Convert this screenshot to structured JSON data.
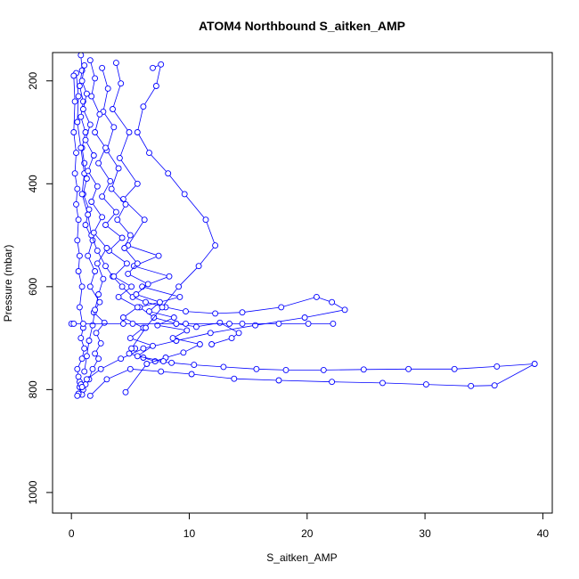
{
  "chart_data": {
    "type": "scatter",
    "title": "ATOM4 Northbound S_aitken_AMP",
    "xlabel": "S_aitken_AMP",
    "ylabel": "Pressure (mbar)",
    "xlim": [
      -1.6,
      40.8
    ],
    "ylim": [
      1040,
      145
    ],
    "y_reversed": true,
    "grid": false,
    "legend": "none",
    "xticks": [
      0,
      10,
      20,
      30,
      40
    ],
    "yticks": [
      200,
      400,
      600,
      800,
      1000
    ],
    "point_style": "open-circle",
    "colors": {
      "series": "#0000ff",
      "axes": "#000000",
      "background": "#ffffff"
    },
    "series": [
      {
        "x": [
          0.8,
          0.9,
          0.7,
          1.0,
          0.8,
          1.2,
          0.9,
          1.1,
          1.3,
          1.0,
          1.5,
          1.2,
          1.8,
          1.4,
          2.0,
          1.6,
          2.4,
          1.9,
          2.8,
          2.1,
          2.5,
          2.0,
          2.3,
          1.8,
          1.5,
          1.2,
          1.0,
          0.9
        ],
        "y": [
          150,
          180,
          210,
          240,
          270,
          300,
          330,
          360,
          390,
          420,
          450,
          480,
          510,
          540,
          570,
          600,
          630,
          650,
          670,
          690,
          710,
          730,
          740,
          760,
          780,
          790,
          800,
          810
        ]
      },
      {
        "x": [
          0.4,
          0.6,
          0.5,
          0.8,
          1.1,
          0.9,
          1.4,
          1.7,
          2.2,
          2.9,
          3.5,
          4.3,
          5.2,
          6.3,
          8.0,
          9.7,
          12.2,
          14.5,
          17.8,
          20.8,
          22.1,
          23.2,
          19.8,
          15.6,
          11.8,
          8.9,
          6.1,
          4.2,
          2.5,
          1.3,
          0.7
        ],
        "y": [
          185,
          230,
          280,
          330,
          380,
          420,
          460,
          500,
          530,
          560,
          580,
          600,
          620,
          630,
          640,
          648,
          652,
          650,
          640,
          620,
          630,
          645,
          660,
          675,
          690,
          705,
          720,
          740,
          760,
          780,
          795
        ]
      },
      {
        "x": [
          3.8,
          4.2,
          3.5,
          4.9,
          4.1,
          5.6,
          4.4,
          6.2,
          4.8,
          7.4,
          5.3,
          8.3,
          6.0,
          9.2,
          5.8,
          7.0,
          8.9,
          10.6,
          12.6,
          14.2,
          13.6,
          11.9
        ],
        "y": [
          165,
          205,
          255,
          300,
          350,
          400,
          430,
          470,
          520,
          540,
          560,
          580,
          600,
          620,
          640,
          660,
          672,
          678,
          670,
          690,
          700,
          712
        ]
      },
      {
        "x": [
          5.4,
          4.9,
          6.1,
          7.1,
          8.5,
          10.4,
          12.9,
          15.7,
          18.2,
          21.4,
          24.8,
          28.6,
          32.5,
          36.1,
          39.3,
          35.9,
          33.9,
          30.1,
          26.4,
          22.1,
          17.6,
          13.8,
          10.2,
          7.6,
          5.0,
          3.0,
          1.6
        ],
        "y": [
          720,
          730,
          738,
          745,
          748,
          752,
          756,
          760,
          762,
          762,
          761,
          760,
          760,
          755,
          750,
          792,
          793,
          790,
          787,
          785,
          782,
          779,
          770,
          765,
          760,
          780,
          812
        ]
      },
      {
        "x": [
          0.2,
          0.3,
          0.2,
          0.4,
          0.3,
          0.5,
          0.4,
          0.6,
          0.5,
          0.7,
          0.6,
          0.9,
          0.7,
          1.0,
          0.8,
          1.1,
          0.9,
          0.5,
          0.6,
          0.7,
          0.8,
          0.9,
          0.6,
          0.5
        ],
        "y": [
          190,
          240,
          300,
          340,
          380,
          410,
          440,
          470,
          510,
          540,
          570,
          600,
          640,
          680,
          700,
          720,
          740,
          760,
          775,
          785,
          790,
          795,
          808,
          812
        ]
      },
      {
        "x": [
          2.6,
          3.1,
          2.7,
          3.6,
          3.0,
          4.0,
          3.4,
          4.6,
          3.9,
          5.0,
          4.5,
          5.6,
          4.8,
          6.5,
          5.5,
          7.5,
          6.6,
          8.7,
          7.3,
          9.8,
          8.6,
          10.9,
          9.5,
          8.0,
          6.4,
          4.6
        ],
        "y": [
          175,
          215,
          260,
          290,
          335,
          370,
          410,
          440,
          470,
          500,
          525,
          555,
          575,
          595,
          615,
          630,
          648,
          660,
          675,
          685,
          700,
          712,
          728,
          738,
          750,
          805
        ]
      },
      {
        "x": [
          1.6,
          2.0,
          1.7,
          2.4,
          2.0,
          2.9,
          2.3,
          3.3,
          2.6,
          3.8,
          2.9,
          4.3,
          3.2,
          4.7,
          3.6,
          5.1,
          4.0,
          5.6,
          4.4,
          6.1,
          5.0,
          6.9,
          5.6,
          7.8
        ],
        "y": [
          160,
          195,
          230,
          265,
          300,
          330,
          360,
          395,
          425,
          455,
          480,
          505,
          530,
          555,
          580,
          600,
          620,
          640,
          660,
          680,
          700,
          715,
          735,
          745
        ]
      },
      {
        "x": [
          6.9,
          7.6,
          7.2,
          6.1,
          5.6,
          6.6,
          8.2,
          9.6,
          11.4,
          12.2,
          10.8,
          9.1,
          7.7,
          6.3,
          5.1
        ],
        "y": [
          175,
          168,
          210,
          250,
          300,
          340,
          380,
          420,
          470,
          520,
          560,
          600,
          640,
          680,
          720
        ]
      },
      {
        "x": [
          1.1,
          0.9,
          1.3,
          1.0,
          1.6,
          1.2,
          1.9,
          1.4,
          2.2,
          1.7,
          2.6,
          1.9,
          3.0,
          2.2,
          2.7,
          2.3,
          2.0,
          1.8,
          1.5,
          1.3,
          1.1
        ],
        "y": [
          170,
          200,
          225,
          255,
          285,
          315,
          345,
          375,
          405,
          435,
          465,
          495,
          525,
          555,
          585,
          615,
          645,
          675,
          705,
          735,
          765
        ]
      },
      {
        "x": [
          0.0,
          0.2,
          4.4,
          8.9,
          13.4,
          17.6,
          20.1,
          22.2,
          14.5,
          9.7,
          5.2,
          1.0
        ],
        "y": [
          672,
          672,
          672,
          672,
          672,
          672,
          672,
          672,
          672,
          672,
          672,
          672
        ]
      }
    ]
  }
}
